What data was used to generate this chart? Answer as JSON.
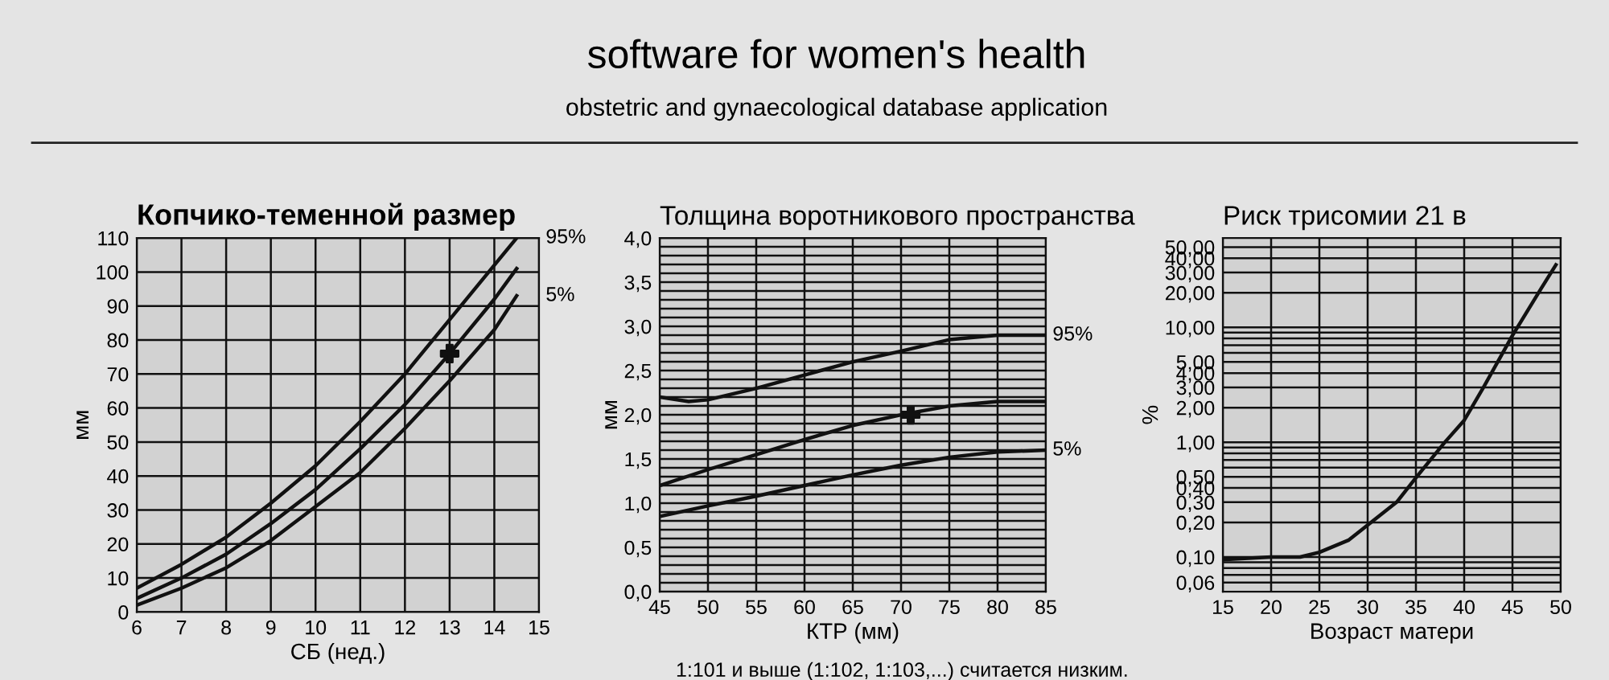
{
  "chart_data": [
    {
      "type": "line",
      "title": "Копчико-теменной размер",
      "xlabel": "СБ (нед.)",
      "ylabel": "мм",
      "annotations": [
        "software for women's health",
        "obstetric and gynaecological database application"
      ],
      "xlim": [
        6,
        15
      ],
      "xticks": [
        6,
        7,
        8,
        9,
        10,
        11,
        12,
        13,
        14,
        15
      ],
      "ylim": [
        0,
        110
      ],
      "yticks": [
        0,
        10,
        20,
        30,
        40,
        50,
        60,
        70,
        80,
        90,
        100,
        110
      ],
      "grid": true,
      "legend": false,
      "series": [
        {
          "name": "95%",
          "color": "#111111",
          "x": [
            6,
            7,
            8,
            9,
            10,
            11,
            12,
            13,
            14,
            14.5
          ],
          "values": [
            7,
            14,
            22,
            32,
            43,
            56,
            70,
            86,
            102,
            110
          ]
        },
        {
          "color": "#111111",
          "x": [
            6,
            7,
            8,
            9,
            10,
            11,
            12,
            13,
            14,
            14.5
          ],
          "values": [
            4,
            10,
            17,
            26,
            36,
            48,
            61,
            76,
            92,
            101
          ]
        },
        {
          "name": "5%",
          "color": "#111111",
          "x": [
            6,
            7,
            8,
            9,
            10,
            11,
            12,
            13,
            14,
            14.5
          ],
          "values": [
            2,
            7,
            13,
            21,
            31,
            41,
            54,
            68,
            83,
            93
          ]
        },
        {
          "type": "scatter",
          "marker": "cross",
          "color": "#111111",
          "x": [
            13
          ],
          "values": [
            76
          ]
        }
      ]
    },
    {
      "type": "line",
      "title": "Толщина воротникового пространства",
      "xlabel": "КТР (мм)",
      "ylabel": "мм",
      "annotations": [
        "1:101 и выше (1:102, 1:103,...) считается низким."
      ],
      "xlim": [
        45,
        85
      ],
      "xticks": [
        45,
        50,
        55,
        60,
        65,
        70,
        75,
        80,
        85
      ],
      "ylim": [
        0,
        4
      ],
      "yticks": [
        {
          "value": 0,
          "label": "0,0"
        },
        {
          "value": 0.1,
          "label": null
        },
        {
          "value": 0.2,
          "label": null
        },
        {
          "value": 0.3,
          "label": null
        },
        {
          "value": 0.4,
          "label": null
        },
        {
          "value": 0.5,
          "label": "0,5"
        },
        {
          "value": 0.6,
          "label": null
        },
        {
          "value": 0.7,
          "label": null
        },
        {
          "value": 0.8,
          "label": null
        },
        {
          "value": 0.9,
          "label": null
        },
        {
          "value": 1.0,
          "label": "1,0"
        },
        {
          "value": 1.1,
          "label": null
        },
        {
          "value": 1.2,
          "label": null
        },
        {
          "value": 1.3,
          "label": null
        },
        {
          "value": 1.4,
          "label": null
        },
        {
          "value": 1.5,
          "label": "1,5"
        },
        {
          "value": 1.6,
          "label": null
        },
        {
          "value": 1.7,
          "label": null
        },
        {
          "value": 1.8,
          "label": null
        },
        {
          "value": 1.9,
          "label": null
        },
        {
          "value": 2.0,
          "label": "2,0"
        },
        {
          "value": 2.1,
          "label": null
        },
        {
          "value": 2.2,
          "label": null
        },
        {
          "value": 2.3,
          "label": null
        },
        {
          "value": 2.4,
          "label": null
        },
        {
          "value": 2.5,
          "label": "2,5"
        },
        {
          "value": 2.6,
          "label": null
        },
        {
          "value": 2.7,
          "label": null
        },
        {
          "value": 2.8,
          "label": null
        },
        {
          "value": 2.9,
          "label": null
        },
        {
          "value": 3.0,
          "label": "3,0"
        },
        {
          "value": 3.1,
          "label": null
        },
        {
          "value": 3.2,
          "label": null
        },
        {
          "value": 3.3,
          "label": null
        },
        {
          "value": 3.4,
          "label": null
        },
        {
          "value": 3.5,
          "label": "3,5"
        },
        {
          "value": 3.6,
          "label": null
        },
        {
          "value": 3.7,
          "label": null
        },
        {
          "value": 3.8,
          "label": null
        },
        {
          "value": 3.9,
          "label": null
        },
        {
          "value": 4.0,
          "label": "4,0"
        }
      ],
      "grid": true,
      "legend": false,
      "series": [
        {
          "name": "95%",
          "color": "#111111",
          "x": [
            45,
            48,
            50,
            55,
            60,
            65,
            70,
            75,
            80,
            85
          ],
          "values": [
            2.2,
            2.15,
            2.17,
            2.3,
            2.45,
            2.6,
            2.72,
            2.85,
            2.9,
            2.9
          ]
        },
        {
          "color": "#111111",
          "x": [
            45,
            50,
            55,
            60,
            65,
            70,
            75,
            80,
            85
          ],
          "values": [
            1.2,
            1.38,
            1.55,
            1.72,
            1.88,
            2.0,
            2.1,
            2.15,
            2.15
          ]
        },
        {
          "name": "5%",
          "color": "#111111",
          "x": [
            45,
            50,
            55,
            60,
            65,
            70,
            75,
            80,
            85
          ],
          "values": [
            0.85,
            0.97,
            1.08,
            1.2,
            1.32,
            1.43,
            1.52,
            1.58,
            1.6
          ]
        },
        {
          "type": "scatter",
          "marker": "cross",
          "color": "#111111",
          "x": [
            71
          ],
          "values": [
            2.0
          ]
        }
      ]
    },
    {
      "type": "line",
      "title": "Риск трисомии 21 в",
      "xlabel": "Возраст матери",
      "ylabel": "%",
      "log": "y",
      "xlim": [
        15,
        50
      ],
      "xticks": [
        15,
        20,
        25,
        30,
        35,
        40,
        45,
        50
      ],
      "ylim": [
        0.05,
        60
      ],
      "yticks": [
        {
          "value": 0.06,
          "label": "0,06"
        },
        {
          "value": 0.07,
          "label": null
        },
        {
          "value": 0.08,
          "label": null
        },
        {
          "value": 0.09,
          "label": null
        },
        {
          "value": 0.1,
          "label": "0,10"
        },
        {
          "value": 0.2,
          "label": "0,20"
        },
        {
          "value": 0.3,
          "label": "0,30"
        },
        {
          "value": 0.4,
          "label": "0,40"
        },
        {
          "value": 0.5,
          "label": "0,50"
        },
        {
          "value": 0.6,
          "label": null
        },
        {
          "value": 0.7,
          "label": null
        },
        {
          "value": 0.8,
          "label": null
        },
        {
          "value": 0.9,
          "label": null
        },
        {
          "value": 1,
          "label": "1,00"
        },
        {
          "value": 2,
          "label": "2,00"
        },
        {
          "value": 3,
          "label": "3,00"
        },
        {
          "value": 4,
          "label": "4,00"
        },
        {
          "value": 5,
          "label": "5,00"
        },
        {
          "value": 6,
          "label": null
        },
        {
          "value": 7,
          "label": null
        },
        {
          "value": 8,
          "label": null
        },
        {
          "value": 9,
          "label": null
        },
        {
          "value": 10,
          "label": "10,00"
        },
        {
          "value": 20,
          "label": "20,00"
        },
        {
          "value": 30,
          "label": "30,00"
        },
        {
          "value": 40,
          "label": "40,00"
        },
        {
          "value": 50,
          "label": "50,00"
        }
      ],
      "grid": true,
      "legend": false,
      "series": [
        {
          "color": "#111111",
          "x": [
            15,
            20,
            23,
            25,
            28,
            30,
            33,
            35,
            38,
            40,
            42,
            45,
            48,
            49.5
          ],
          "values": [
            0.095,
            0.1,
            0.1,
            0.11,
            0.14,
            0.19,
            0.3,
            0.49,
            1.0,
            1.55,
            3.0,
            8.5,
            22,
            35
          ]
        }
      ]
    }
  ]
}
